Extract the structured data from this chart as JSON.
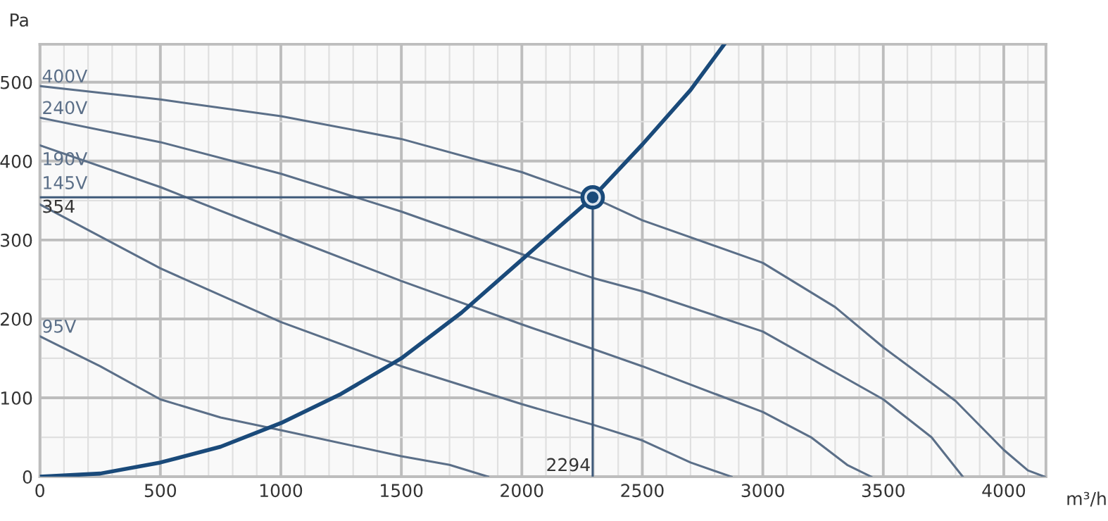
{
  "chart_data": {
    "type": "line",
    "xlabel": "m³/h",
    "ylabel": "Pa",
    "xlim": [
      0,
      4175
    ],
    "ylim": [
      0,
      548
    ],
    "xticks": [
      0,
      {
        "value": 100,
        "label": null
      },
      {
        "value": 200,
        "label": null
      },
      {
        "value": 300,
        "label": null
      },
      {
        "value": 400,
        "label": null
      },
      500,
      {
        "value": 600,
        "label": null
      },
      {
        "value": 700,
        "label": null
      },
      {
        "value": 800,
        "label": null
      },
      {
        "value": 900,
        "label": null
      },
      1000,
      {
        "value": 1100,
        "label": null
      },
      {
        "value": 1200,
        "label": null
      },
      {
        "value": 1300,
        "label": null
      },
      {
        "value": 1400,
        "label": null
      },
      1500,
      {
        "value": 1600,
        "label": null
      },
      {
        "value": 1700,
        "label": null
      },
      {
        "value": 1800,
        "label": null
      },
      {
        "value": 1900,
        "label": null
      },
      2000,
      {
        "value": 2100,
        "label": null
      },
      {
        "value": 2200,
        "label": null
      },
      {
        "value": 2300,
        "label": null
      },
      {
        "value": 2400,
        "label": null
      },
      2500,
      {
        "value": 2600,
        "label": null
      },
      {
        "value": 2700,
        "label": null
      },
      {
        "value": 2800,
        "label": null
      },
      {
        "value": 2900,
        "label": null
      },
      3000,
      {
        "value": 3100,
        "label": null
      },
      {
        "value": 3200,
        "label": null
      },
      {
        "value": 3300,
        "label": null
      },
      {
        "value": 3400,
        "label": null
      },
      3500,
      {
        "value": 3600,
        "label": null
      },
      {
        "value": 3700,
        "label": null
      },
      {
        "value": 3800,
        "label": null
      },
      {
        "value": 3900,
        "label": null
      },
      4000,
      {
        "value": 4100,
        "label": null
      }
    ],
    "yticks": [
      0,
      {
        "value": 50,
        "label": null
      },
      100,
      {
        "value": 150,
        "label": null
      },
      200,
      {
        "value": 250,
        "label": null
      },
      300,
      {
        "value": 350,
        "label": null
      },
      400,
      {
        "value": 450,
        "label": null
      },
      500
    ],
    "grid": true,
    "legend": false,
    "series": [
      {
        "name": "400V",
        "color": "#5b6f88",
        "x": [
          0,
          500,
          1000,
          1500,
          2000,
          2294,
          2500,
          3000,
          3300,
          3500,
          3800,
          4000,
          4100,
          4170
        ],
        "values": [
          495,
          478,
          457,
          428,
          386,
          354,
          325,
          271,
          215,
          164,
          96,
          34,
          8,
          0
        ]
      },
      {
        "name": "240V",
        "color": "#5b6f88",
        "x": [
          0,
          500,
          1000,
          1500,
          2000,
          2294,
          2500,
          3000,
          3500,
          3700,
          3830
        ],
        "values": [
          455,
          424,
          384,
          336,
          282,
          252,
          235,
          184,
          98,
          50,
          0
        ]
      },
      {
        "name": "190V",
        "color": "#5b6f88",
        "x": [
          0,
          500,
          1000,
          1500,
          2000,
          2294,
          2500,
          3000,
          3200,
          3350,
          3450
        ],
        "values": [
          420,
          367,
          307,
          248,
          193,
          162,
          140,
          82,
          50,
          15,
          0
        ]
      },
      {
        "name": "145V",
        "color": "#5b6f88",
        "x": [
          0,
          500,
          1000,
          1500,
          2000,
          2294,
          2500,
          2700,
          2870
        ],
        "values": [
          345,
          264,
          196,
          140,
          92,
          66,
          46,
          18,
          0
        ]
      },
      {
        "name": "95V",
        "color": "#5b6f88",
        "x": [
          0,
          250,
          500,
          750,
          1000,
          1500,
          1700,
          1860
        ],
        "values": [
          178,
          140,
          98,
          75,
          59,
          26,
          15,
          0
        ]
      },
      {
        "color": "#1a4a7a",
        "x": [
          0,
          250,
          500,
          750,
          1000,
          1250,
          1500,
          1750,
          2000,
          2294,
          2500,
          2700,
          2840
        ],
        "values": [
          0,
          4,
          18,
          38,
          68,
          105,
          150,
          208,
          275,
          354,
          421,
          490,
          548
        ]
      },
      {
        "color": "#3f5a7a",
        "x": [
          0,
          2294,
          2294
        ],
        "values": [
          354,
          354,
          0
        ]
      },
      {
        "type": "scatter",
        "color": "#1a4a7a",
        "marker": "circle",
        "x": [
          2294
        ],
        "values": [
          354
        ]
      }
    ],
    "annotations": [
      {
        "text": "354",
        "x": 0,
        "y": 354
      },
      {
        "text": "2294",
        "x": 2294,
        "y": 0
      }
    ]
  }
}
